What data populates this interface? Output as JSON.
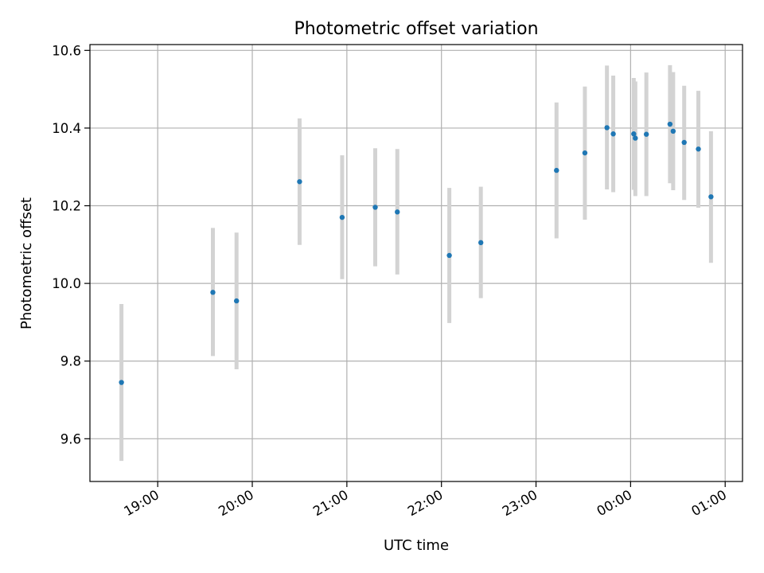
{
  "chart_data": {
    "type": "scatter",
    "title": "Photometric offset variation",
    "xlabel": "UTC time",
    "ylabel": "Photometric offset",
    "x_axis_kind": "time",
    "xlim": [
      "18:17",
      "01:11"
    ],
    "ylim": [
      9.49,
      10.615
    ],
    "grid": true,
    "x_ticks": [
      "19:00",
      "20:00",
      "21:00",
      "22:00",
      "23:00",
      "00:00",
      "01:00"
    ],
    "y_ticks": [
      9.6,
      9.8,
      10.0,
      10.2,
      10.4,
      10.6
    ],
    "y_tick_labels": [
      "9.6",
      "9.8",
      "10.0",
      "10.2",
      "10.4",
      "10.6"
    ],
    "colors": {
      "points": "#1f77b4",
      "error_bars": "#d3d3d3",
      "grid": "#b0b0b0"
    },
    "points": [
      {
        "x": "18:37",
        "y": 9.745,
        "ylow": 9.543,
        "yhigh": 9.947
      },
      {
        "x": "19:35",
        "y": 9.977,
        "ylow": 9.813,
        "yhigh": 10.143
      },
      {
        "x": "19:50",
        "y": 9.955,
        "ylow": 9.779,
        "yhigh": 10.131
      },
      {
        "x": "20:30",
        "y": 10.262,
        "ylow": 10.099,
        "yhigh": 10.425
      },
      {
        "x": "20:57",
        "y": 10.17,
        "ylow": 10.011,
        "yhigh": 10.33
      },
      {
        "x": "21:18",
        "y": 10.196,
        "ylow": 10.044,
        "yhigh": 10.348
      },
      {
        "x": "21:32",
        "y": 10.184,
        "ylow": 10.023,
        "yhigh": 10.346
      },
      {
        "x": "22:05",
        "y": 10.072,
        "ylow": 9.898,
        "yhigh": 10.246
      },
      {
        "x": "22:25",
        "y": 10.105,
        "ylow": 9.962,
        "yhigh": 10.249
      },
      {
        "x": "23:13",
        "y": 10.291,
        "ylow": 10.116,
        "yhigh": 10.466
      },
      {
        "x": "23:31",
        "y": 10.336,
        "ylow": 10.164,
        "yhigh": 10.507
      },
      {
        "x": "23:45",
        "y": 10.401,
        "ylow": 10.242,
        "yhigh": 10.561
      },
      {
        "x": "23:49",
        "y": 10.385,
        "ylow": 10.235,
        "yhigh": 10.535
      },
      {
        "x": "00:02",
        "y": 10.385,
        "ylow": 10.241,
        "yhigh": 10.529
      },
      {
        "x": "00:03",
        "y": 10.374,
        "ylow": 10.225,
        "yhigh": 10.52
      },
      {
        "x": "00:10",
        "y": 10.384,
        "ylow": 10.225,
        "yhigh": 10.543
      },
      {
        "x": "00:25",
        "y": 10.41,
        "ylow": 10.258,
        "yhigh": 10.562
      },
      {
        "x": "00:27",
        "y": 10.392,
        "ylow": 10.24,
        "yhigh": 10.544
      },
      {
        "x": "00:34",
        "y": 10.363,
        "ylow": 10.215,
        "yhigh": 10.509
      },
      {
        "x": "00:43",
        "y": 10.346,
        "ylow": 10.195,
        "yhigh": 10.496
      },
      {
        "x": "00:51",
        "y": 10.223,
        "ylow": 10.053,
        "yhigh": 10.392
      }
    ]
  }
}
